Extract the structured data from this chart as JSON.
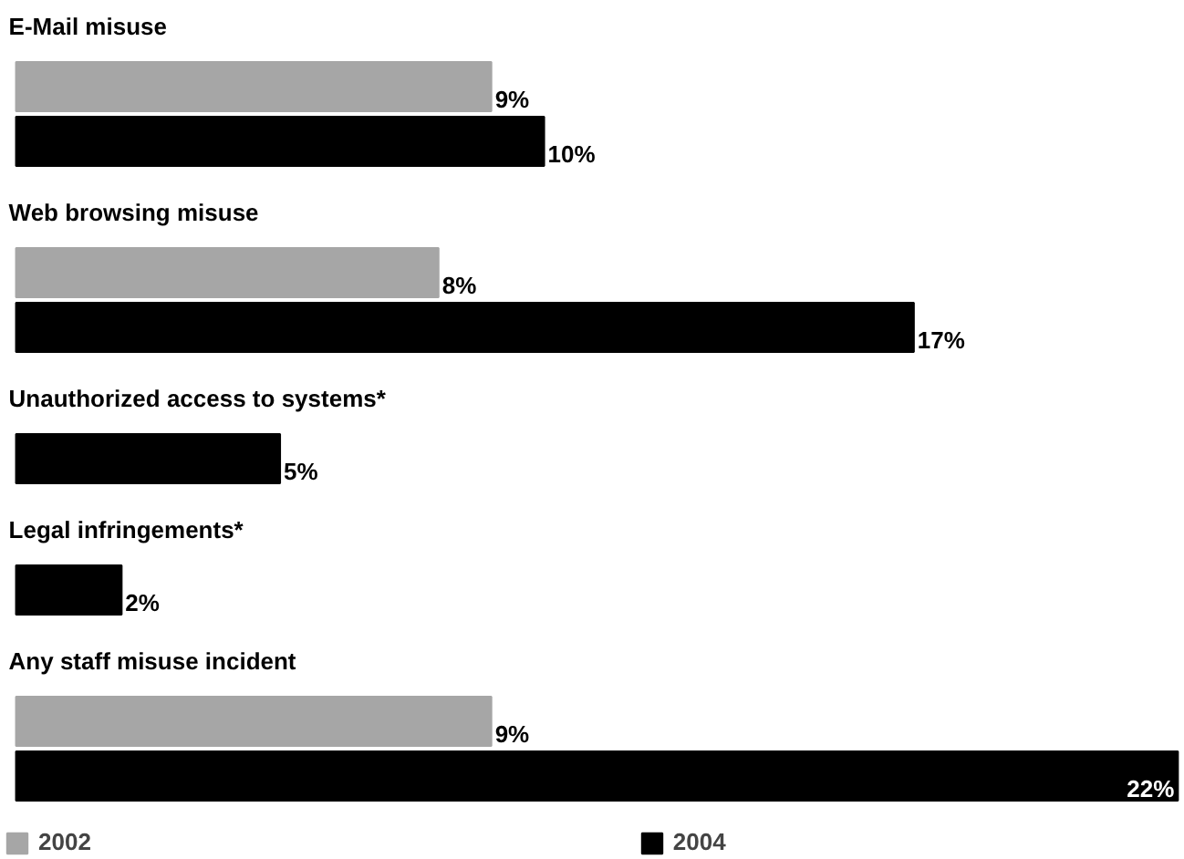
{
  "chart_data": {
    "type": "bar",
    "orientation": "horizontal",
    "categories": [
      "E-Mail misuse",
      "Web browsing misuse",
      "Unauthorized access to systems*",
      "Legal infringements*",
      "Any staff misuse incident"
    ],
    "series": [
      {
        "name": "2002",
        "color": "#a6a6a6",
        "values": [
          9,
          8,
          null,
          null,
          9
        ],
        "value_labels": [
          "9%",
          "8%",
          null,
          null,
          "9%"
        ]
      },
      {
        "name": "2004",
        "color": "#000000",
        "values": [
          10,
          17,
          5,
          2,
          22
        ],
        "value_labels": [
          "10%",
          "17%",
          "5%",
          "2%",
          "22%"
        ]
      }
    ],
    "legend": "bottom"
  }
}
